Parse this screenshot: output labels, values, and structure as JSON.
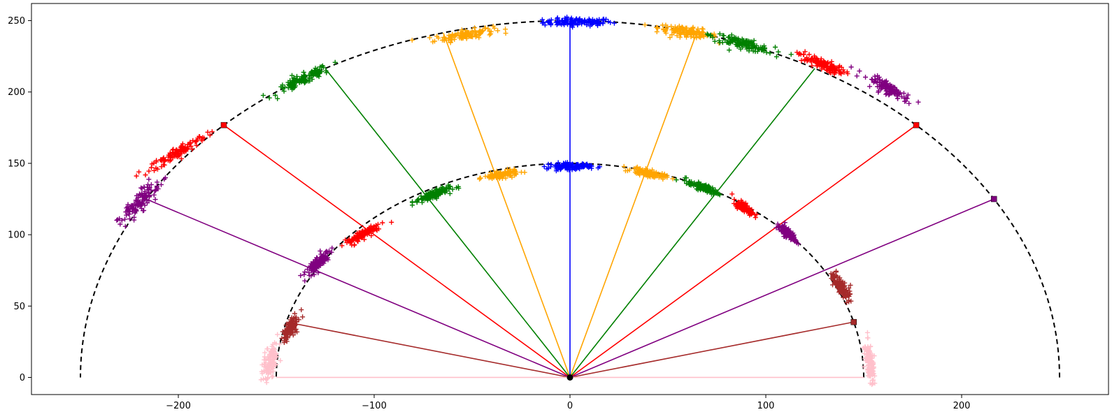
{
  "chart_data": {
    "type": "scatter",
    "title": "",
    "xlabel": "",
    "ylabel": "",
    "xlim": [
      -275,
      275
    ],
    "ylim": [
      -12,
      262
    ],
    "x_ticks": [
      -200,
      -100,
      0,
      100,
      200
    ],
    "y_ticks": [
      0,
      50,
      100,
      150,
      200,
      250
    ],
    "x_tick_labels": [
      "−200",
      "−100",
      "0",
      "100",
      "200"
    ],
    "y_tick_labels": [
      "0",
      "50",
      "100",
      "150",
      "200",
      "250"
    ],
    "grid": false,
    "legend": "none",
    "origin": {
      "x": 0,
      "y": 0,
      "color": "#000000"
    },
    "arcs": [
      {
        "radius": 150,
        "color": "#000000",
        "style": "dashed"
      },
      {
        "radius": 250,
        "color": "#000000",
        "style": "dashed"
      }
    ],
    "rays": [
      {
        "color": "#0000ff",
        "angle_deg": 90,
        "length": 250
      },
      {
        "color": "#ffa500",
        "angle_deg": 105,
        "length": 250
      },
      {
        "color": "#ffa500",
        "angle_deg": 75,
        "length": 250
      },
      {
        "color": "#008000",
        "angle_deg": 120,
        "length": 250
      },
      {
        "color": "#008000",
        "angle_deg": 60,
        "length": 250
      },
      {
        "color": "#ff0000",
        "angle_deg": 135,
        "length": 250
      },
      {
        "color": "#ff0000",
        "angle_deg": 45,
        "length": 250
      },
      {
        "color": "#800080",
        "angle_deg": 150,
        "length": 250
      },
      {
        "color": "#800080",
        "angle_deg": 30,
        "length": 250
      },
      {
        "color": "#a52a2a",
        "angle_deg": 165,
        "length": 150
      },
      {
        "color": "#a52a2a",
        "angle_deg": 15,
        "length": 150
      },
      {
        "color": "#ffc0cb",
        "angle_deg": 180,
        "length": 150
      },
      {
        "color": "#ffc0cb",
        "angle_deg": 0,
        "length": 150
      }
    ],
    "square_markers": [
      {
        "x": -176.8,
        "y": 176.8,
        "color": "#ff0000"
      },
      {
        "x": 176.8,
        "y": 176.8,
        "color": "#ff0000"
      },
      {
        "x": 216.5,
        "y": 125.0,
        "color": "#800080"
      },
      {
        "x": 144.9,
        "y": 38.8,
        "color": "#a52a2a"
      }
    ],
    "clusters": [
      {
        "color": "#0000ff",
        "x": 4,
        "y": 249,
        "spread_x": 16,
        "spread_y": 2.5,
        "angle_deg": 0
      },
      {
        "color": "#ffa500",
        "x": -54,
        "y": 240,
        "spread_x": 14,
        "spread_y": 3,
        "angle_deg": 12
      },
      {
        "color": "#ffa500",
        "x": 60,
        "y": 242,
        "spread_x": 14,
        "spread_y": 3,
        "angle_deg": -12
      },
      {
        "color": "#008000",
        "x": -136,
        "y": 209,
        "spread_x": 15,
        "spread_y": 3,
        "angle_deg": 33
      },
      {
        "color": "#008000",
        "x": 88,
        "y": 234,
        "spread_x": 15,
        "spread_y": 3,
        "angle_deg": -20
      },
      {
        "color": "#ff0000",
        "x": -200,
        "y": 158,
        "spread_x": 17,
        "spread_y": 3,
        "angle_deg": 39
      },
      {
        "color": "#ff0000",
        "x": 128,
        "y": 220,
        "spread_x": 12,
        "spread_y": 3,
        "angle_deg": -30
      },
      {
        "color": "#800080",
        "x": -219,
        "y": 124,
        "spread_x": 16,
        "spread_y": 4,
        "angle_deg": 58
      },
      {
        "color": "#800080",
        "x": 163,
        "y": 202,
        "spread_x": 12,
        "spread_y": 3,
        "angle_deg": -38
      },
      {
        "color": "#0000ff",
        "x": 0,
        "y": 148,
        "spread_x": 10,
        "spread_y": 2,
        "angle_deg": 0
      },
      {
        "color": "#ffa500",
        "x": -35,
        "y": 142,
        "spread_x": 8,
        "spread_y": 2,
        "angle_deg": 12
      },
      {
        "color": "#ffa500",
        "x": 40,
        "y": 143,
        "spread_x": 8,
        "spread_y": 2,
        "angle_deg": -15
      },
      {
        "color": "#008000",
        "x": -70,
        "y": 128,
        "spread_x": 9,
        "spread_y": 2.5,
        "angle_deg": 25
      },
      {
        "color": "#008000",
        "x": 68,
        "y": 133,
        "spread_x": 8,
        "spread_y": 2,
        "angle_deg": -28
      },
      {
        "color": "#ff0000",
        "x": -105,
        "y": 101,
        "spread_x": 10,
        "spread_y": 2.5,
        "angle_deg": 40
      },
      {
        "color": "#ff0000",
        "x": 89,
        "y": 119,
        "spread_x": 6,
        "spread_y": 2,
        "angle_deg": -45
      },
      {
        "color": "#800080",
        "x": -129,
        "y": 80,
        "spread_x": 9,
        "spread_y": 2.5,
        "angle_deg": 55
      },
      {
        "color": "#800080",
        "x": 111,
        "y": 101,
        "spread_x": 6,
        "spread_y": 2,
        "angle_deg": -50
      },
      {
        "color": "#a52a2a",
        "x": -143,
        "y": 34,
        "spread_x": 8,
        "spread_y": 2.5,
        "angle_deg": 72
      },
      {
        "color": "#a52a2a",
        "x": 138,
        "y": 64,
        "spread_x": 9,
        "spread_y": 2.5,
        "angle_deg": -63
      },
      {
        "color": "#ffc0cb",
        "x": -153,
        "y": 12,
        "spread_x": 13,
        "spread_y": 3,
        "angle_deg": 80
      },
      {
        "color": "#ffc0cb",
        "x": 153,
        "y": 12,
        "spread_x": 12,
        "spread_y": 2,
        "angle_deg": -84
      }
    ]
  }
}
